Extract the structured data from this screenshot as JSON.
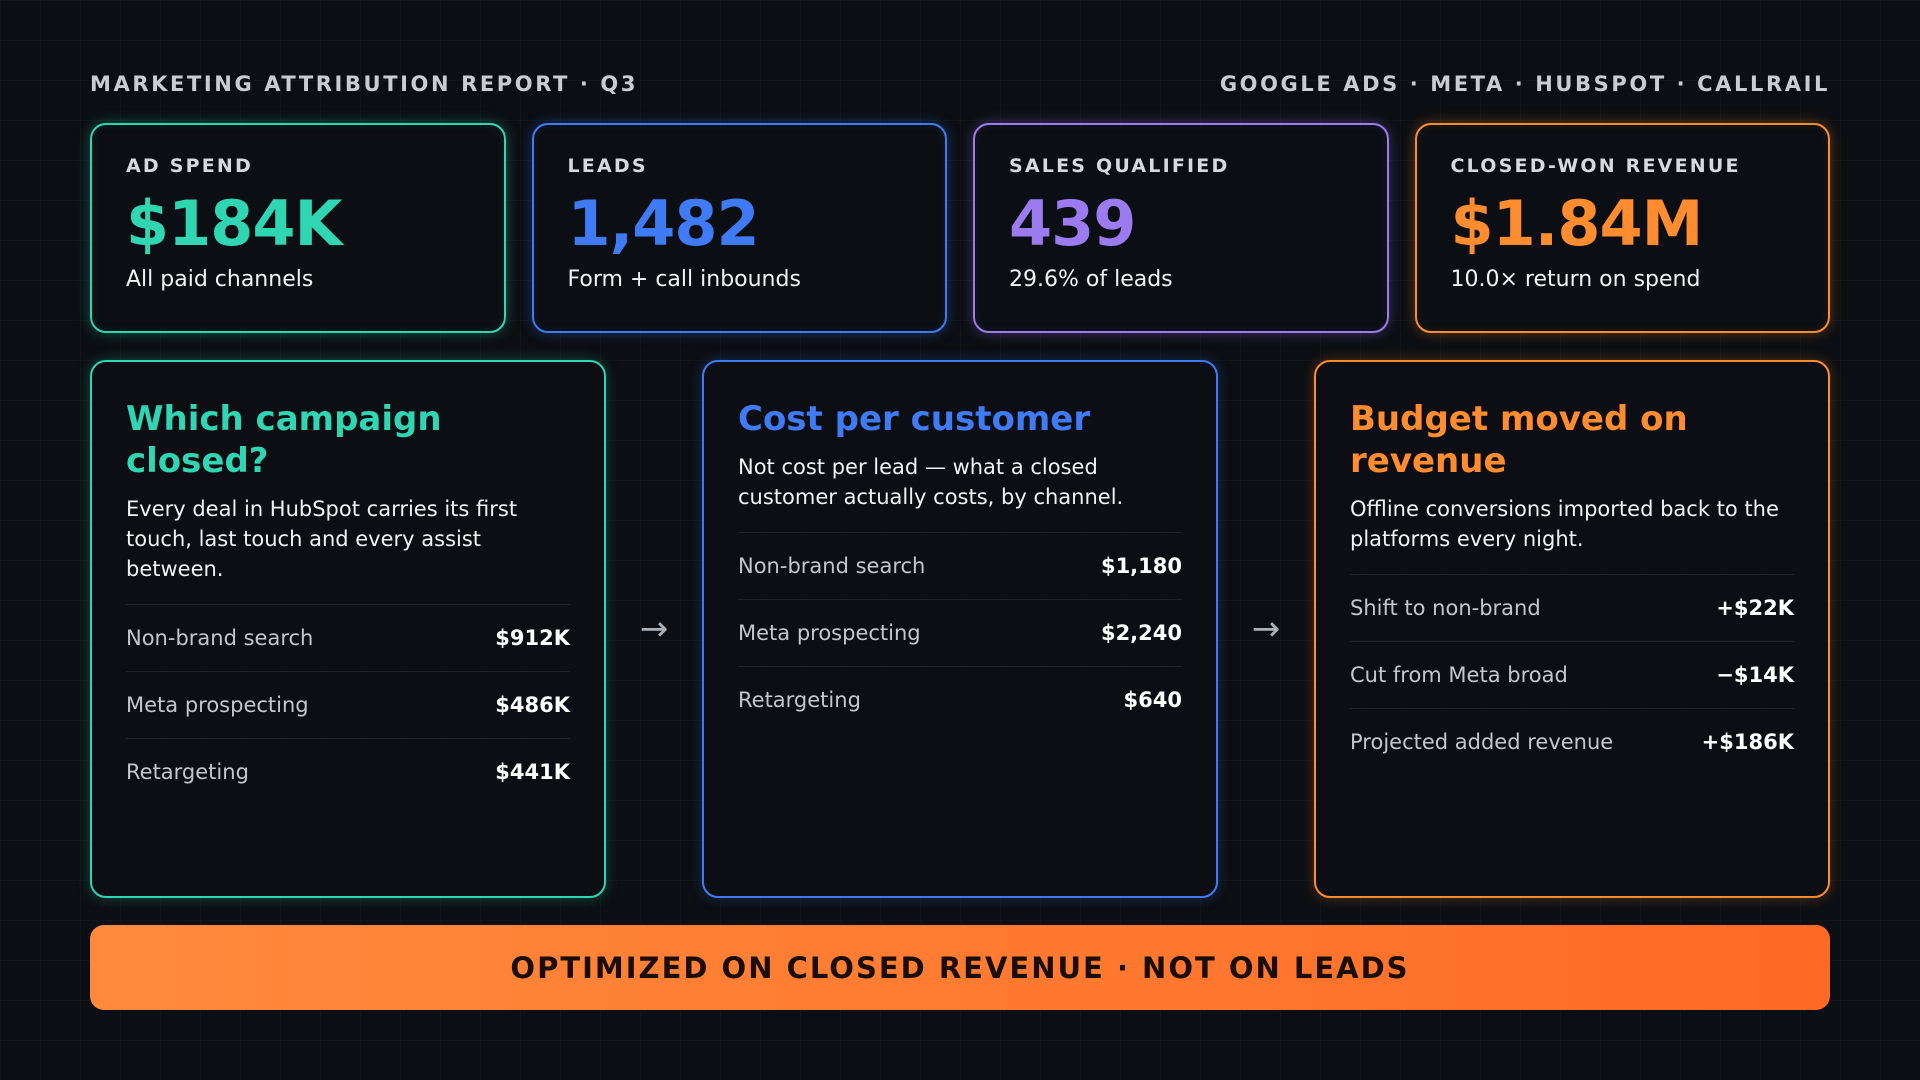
{
  "header": {
    "left": "MARKETING ATTRIBUTION REPORT · Q3",
    "right": "GOOGLE ADS · META · HUBSPOT · CALLRAIL"
  },
  "colors": {
    "teal": "#2fd6b1",
    "blue": "#3f7bf5",
    "purple": "#9b7cf0",
    "orange": "#ff8c2e"
  },
  "kpis": [
    {
      "label": "AD SPEND",
      "value": "$184K",
      "sub": "All paid channels"
    },
    {
      "label": "LEADS",
      "value": "1,482",
      "sub": "Form + call inbounds"
    },
    {
      "label": "SALES QUALIFIED",
      "value": "439",
      "sub": "29.6% of leads"
    },
    {
      "label": "CLOSED-WON REVENUE",
      "value": "$1.84M",
      "sub": "10.0× return on spend"
    }
  ],
  "panels": [
    {
      "title": "Which campaign closed?",
      "desc": "Every deal in HubSpot carries its first touch, last touch and every assist between.",
      "rows": [
        {
          "label": "Non-brand search",
          "value": "$912K"
        },
        {
          "label": "Meta prospecting",
          "value": "$486K"
        },
        {
          "label": "Retargeting",
          "value": "$441K"
        }
      ]
    },
    {
      "title": "Cost per customer",
      "desc": "Not cost per lead — what a closed customer actually costs, by channel.",
      "rows": [
        {
          "label": "Non-brand search",
          "value": "$1,180"
        },
        {
          "label": "Meta prospecting",
          "value": "$2,240"
        },
        {
          "label": "Retargeting",
          "value": "$640"
        }
      ]
    },
    {
      "title": "Budget moved on revenue",
      "desc": "Offline conversions imported back to the platforms every night.",
      "rows": [
        {
          "label": "Shift to non-brand",
          "value": "+$22K"
        },
        {
          "label": "Cut from Meta broad",
          "value": "−$14K"
        },
        {
          "label": "Projected added revenue",
          "value": "+$186K"
        }
      ]
    }
  ],
  "arrows": [
    "→",
    "→"
  ],
  "banner": "OPTIMIZED ON CLOSED REVENUE · NOT ON LEADS"
}
